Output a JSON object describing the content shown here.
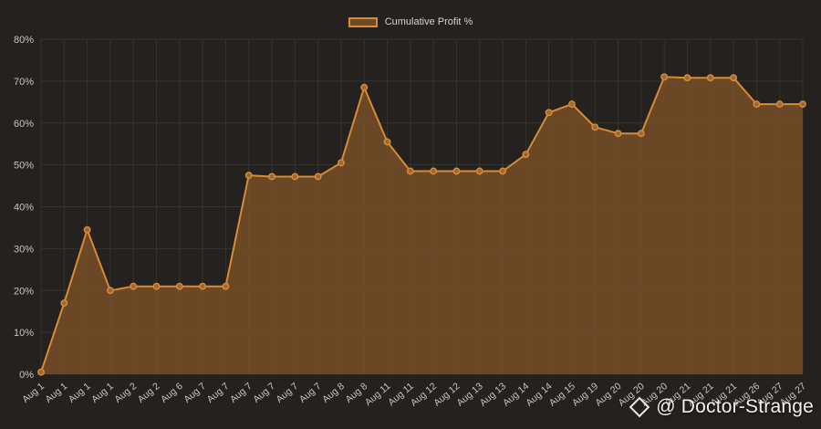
{
  "legend": {
    "label": "Cumulative Profit %"
  },
  "watermark": {
    "text": "@ Doctor-Strange"
  },
  "colors": {
    "background": "#24211e",
    "line": "#d88a36",
    "fill": "rgba(122, 81, 40, 0.82)",
    "grid": "#37332e",
    "tick_text": "#c9c4bd"
  },
  "chart_data": {
    "type": "area",
    "title": "",
    "xlabel": "",
    "ylabel": "",
    "ylim": [
      0,
      80
    ],
    "yticks": [
      "0%",
      "10%",
      "20%",
      "30%",
      "40%",
      "50%",
      "60%",
      "70%",
      "80%"
    ],
    "grid": true,
    "legend_position": "top-center",
    "categories": [
      "Aug 1",
      "Aug 1",
      "Aug 1",
      "Aug 1",
      "Aug 2",
      "Aug 2",
      "Aug 6",
      "Aug 7",
      "Aug 7",
      "Aug 7",
      "Aug 7",
      "Aug 7",
      "Aug 7",
      "Aug 8",
      "Aug 8",
      "Aug 11",
      "Aug 11",
      "Aug 12",
      "Aug 12",
      "Aug 13",
      "Aug 13",
      "Aug 14",
      "Aug 14",
      "Aug 15",
      "Aug 19",
      "Aug 20",
      "Aug 20",
      "Aug 20",
      "Aug 21",
      "Aug 21",
      "Aug 21",
      "Aug 26",
      "Aug 27",
      "Aug 27"
    ],
    "series": [
      {
        "name": "Cumulative Profit %",
        "values": [
          0.5,
          17,
          34.5,
          20,
          21,
          21,
          21,
          21,
          21,
          47.5,
          47.2,
          47.2,
          47.2,
          50.5,
          68.5,
          55.5,
          48.5,
          48.5,
          48.5,
          48.5,
          48.5,
          52.5,
          62.5,
          64.5,
          59,
          57.5,
          57.5,
          71,
          70.8,
          70.8,
          70.8,
          64.5,
          64.5,
          64.5
        ]
      }
    ]
  }
}
